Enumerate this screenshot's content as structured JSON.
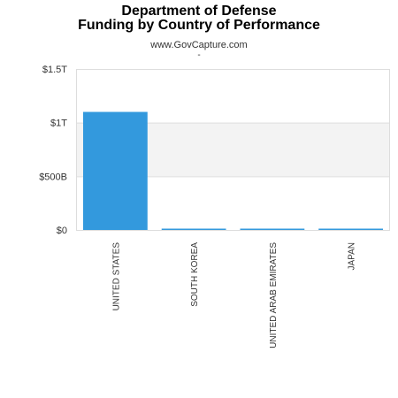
{
  "header": {
    "title_line1": "Department of Defense",
    "title_line2": "Funding by Country of Performance",
    "subtitle": "www.GovCapture.com",
    "subtitle_mark": "-"
  },
  "colors": {
    "bar": "#3399dd",
    "band": "#f3f3f3",
    "grid": "#dddddd",
    "axis_text": "#333333"
  },
  "chart_data": {
    "type": "bar",
    "title": "Department of Defense Funding by Country of Performance",
    "categories": [
      "UNITED STATES",
      "SOUTH KOREA",
      "UNITED ARAB EMIRATES",
      "JAPAN"
    ],
    "values": [
      1100000000000,
      8000000000,
      6000000000,
      5000000000
    ],
    "ylim": [
      0,
      1500000000000
    ],
    "yticks": [
      {
        "value": 0,
        "label": "$0"
      },
      {
        "value": 500000000000,
        "label": "$500B"
      },
      {
        "value": 1000000000000,
        "label": "$1T"
      },
      {
        "value": 1500000000000,
        "label": "$1.5T"
      }
    ],
    "xlabel": "",
    "ylabel": "",
    "grid": true,
    "legend": "none"
  }
}
